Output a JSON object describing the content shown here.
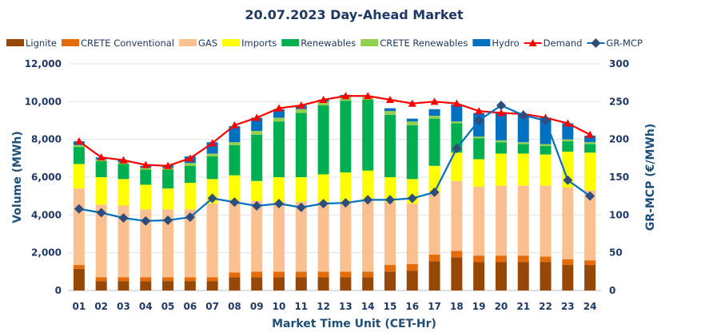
{
  "chart_data": {
    "type": "bar",
    "title": "20.07.2023  Day-Ahead Market",
    "xlabel": "Market Time Unit (CET-Hr)",
    "ylabel": "Volume (MWh)",
    "y2label": "GR-MCP (€/MWh)",
    "ylim": [
      0,
      12000
    ],
    "y2lim": [
      0,
      300
    ],
    "yticks": [
      "0",
      "2,000",
      "4,000",
      "6,000",
      "8,000",
      "10,000",
      "12,000"
    ],
    "y2ticks": [
      "0",
      "50",
      "100",
      "150",
      "200",
      "250",
      "300"
    ],
    "grid": true,
    "legend_position": "top",
    "categories": [
      "01",
      "02",
      "03",
      "04",
      "05",
      "06",
      "07",
      "08",
      "09",
      "10",
      "11",
      "12",
      "13",
      "14",
      "15",
      "16",
      "17",
      "18",
      "19",
      "20",
      "21",
      "22",
      "23",
      "24"
    ],
    "series": [
      {
        "name": "Lignite",
        "kind": "stacked-bar",
        "color": "#974706",
        "values": [
          1150,
          500,
          500,
          500,
          500,
          500,
          500,
          700,
          700,
          700,
          700,
          700,
          700,
          700,
          1000,
          1050,
          1550,
          1750,
          1500,
          1500,
          1500,
          1500,
          1350,
          1350
        ]
      },
      {
        "name": "CRETE Conventional",
        "kind": "stacked-bar",
        "color": "#E46C0A",
        "values": [
          200,
          200,
          200,
          200,
          200,
          200,
          200,
          250,
          300,
          300,
          300,
          300,
          300,
          300,
          350,
          350,
          350,
          350,
          350,
          350,
          350,
          300,
          300,
          250
        ]
      },
      {
        "name": "GAS",
        "kind": "stacked-bar",
        "color": "#FAC090",
        "values": [
          4050,
          3850,
          3800,
          3600,
          3600,
          3600,
          3900,
          3800,
          3750,
          3650,
          3700,
          3700,
          3700,
          3800,
          3350,
          3200,
          3250,
          3700,
          3650,
          3700,
          3700,
          3750,
          3800,
          3700
        ]
      },
      {
        "name": "Imports",
        "kind": "stacked-bar",
        "color": "#FFFF00",
        "values": [
          1300,
          1450,
          1400,
          1300,
          1100,
          1400,
          1300,
          1350,
          1050,
          1350,
          1300,
          1450,
          1550,
          1550,
          1300,
          1300,
          1450,
          1500,
          1450,
          1700,
          1700,
          1650,
          1900,
          2000
        ]
      },
      {
        "name": "Renewables",
        "kind": "stacked-bar",
        "color": "#00B050",
        "values": [
          900,
          850,
          800,
          800,
          1000,
          900,
          1200,
          1600,
          2450,
          2950,
          3400,
          3650,
          3800,
          3750,
          3300,
          2850,
          2500,
          1550,
          1100,
          600,
          500,
          450,
          550,
          450
        ]
      },
      {
        "name": "CRETE Renewables",
        "kind": "stacked-bar",
        "color": "#92D050",
        "values": [
          100,
          100,
          100,
          100,
          100,
          150,
          150,
          150,
          200,
          200,
          200,
          200,
          200,
          200,
          200,
          200,
          150,
          100,
          100,
          100,
          100,
          100,
          100,
          100
        ]
      },
      {
        "name": "Hydro",
        "kind": "stacked-bar",
        "color": "#0070C0",
        "values": [
          200,
          100,
          100,
          100,
          150,
          350,
          600,
          850,
          700,
          450,
          200,
          100,
          100,
          0,
          150,
          150,
          350,
          900,
          1250,
          1500,
          1500,
          1400,
          850,
          350
        ]
      },
      {
        "name": "Demand",
        "kind": "line",
        "axis": "left",
        "color": "#FF0000",
        "marker": "triangle",
        "values": [
          7900,
          7050,
          6900,
          6650,
          6600,
          7000,
          7800,
          8750,
          9150,
          9650,
          9800,
          10100,
          10300,
          10300,
          10100,
          9900,
          10000,
          9900,
          9500,
          9400,
          9350,
          9150,
          8850,
          8250
        ]
      },
      {
        "name": "GR-MCP",
        "kind": "line",
        "axis": "right",
        "color": "#0070C0",
        "marker_color": "#2E4D7B",
        "marker": "diamond",
        "values": [
          108,
          103,
          96,
          92,
          93,
          97,
          122,
          117,
          112,
          115,
          110,
          115,
          116,
          120,
          120,
          122,
          130,
          188,
          225,
          245,
          232,
          225,
          146,
          125
        ]
      }
    ]
  }
}
